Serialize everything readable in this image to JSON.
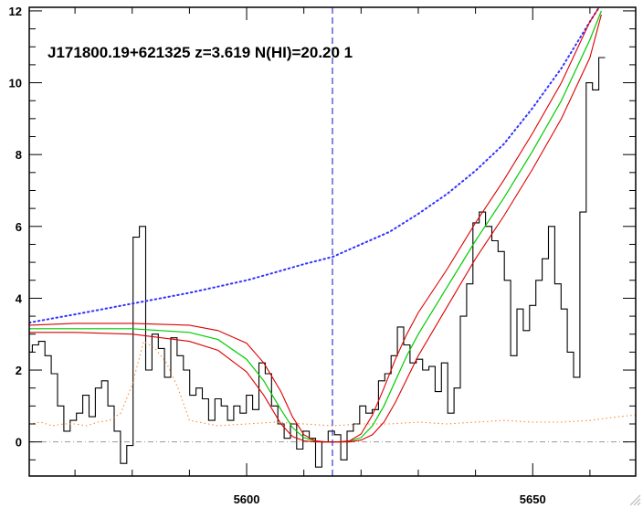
{
  "chart_data": {
    "type": "line",
    "title": "J171800.19+621325 z=3.619 N(HI)=20.20 1",
    "xlabel": "",
    "ylabel": "",
    "xlim": [
      5562,
      5668
    ],
    "ylim": [
      -0.95,
      12.1
    ],
    "x_ticks": [
      5600,
      5650
    ],
    "y_ticks": [
      0,
      2,
      4,
      6,
      8,
      10,
      12
    ],
    "grid": false,
    "legend": "none",
    "vline_x": 5615,
    "zero_line_y": 0,
    "colors": {
      "flux": "#000000",
      "continuum": "#3333ff",
      "error": "#ff8833",
      "fit": "#00cc00",
      "fit_bounds": "#dd0000",
      "vline": "#2222cc",
      "zero_line": "#999999"
    },
    "series": [
      {
        "key": "flux",
        "style": "steps",
        "x": [
          5562.0,
          5563.1,
          5564.2,
          5565.3,
          5566.4,
          5567.5,
          5568.6,
          5569.7,
          5570.8,
          5571.9,
          5573.0,
          5574.1,
          5575.2,
          5576.3,
          5577.4,
          5578.5,
          5579.6,
          5580.7,
          5581.8,
          5582.9,
          5584.0,
          5585.1,
          5586.2,
          5587.3,
          5588.4,
          5589.5,
          5590.6,
          5591.7,
          5592.8,
          5593.9,
          5595.0,
          5596.1,
          5597.2,
          5598.3,
          5599.4,
          5600.5,
          5601.6,
          5602.7,
          5603.8,
          5604.9,
          5606.0,
          5607.1,
          5608.2,
          5609.3,
          5610.4,
          5611.5,
          5612.6,
          5613.7,
          5614.8,
          5615.9,
          5617.0,
          5618.1,
          5619.2,
          5620.3,
          5621.4,
          5622.5,
          5623.6,
          5624.7,
          5625.8,
          5626.9,
          5628.0,
          5629.1,
          5630.2,
          5631.3,
          5632.4,
          5633.5,
          5634.6,
          5635.7,
          5636.8,
          5637.9,
          5639.0,
          5640.1,
          5641.2,
          5642.3,
          5643.4,
          5644.5,
          5645.6,
          5646.7,
          5647.8,
          5648.9,
          5650.0,
          5651.1,
          5652.2,
          5653.3,
          5654.4,
          5655.5,
          5656.6,
          5657.7,
          5658.8,
          5659.9,
          5661.0,
          5662.1
        ],
        "y": [
          2.5,
          2.7,
          2.8,
          2.4,
          1.9,
          1.0,
          0.3,
          0.6,
          0.8,
          1.3,
          0.7,
          1.5,
          1.7,
          1.0,
          0.3,
          -0.6,
          -0.1,
          5.7,
          6.0,
          2.0,
          3.0,
          2.6,
          1.8,
          2.9,
          2.4,
          2.0,
          1.3,
          1.5,
          1.2,
          0.6,
          1.2,
          1.0,
          0.6,
          1.0,
          0.8,
          1.3,
          0.9,
          2.2,
          1.9,
          1.0,
          0.5,
          0.1,
          0.5,
          -0.2,
          0.3,
          0.1,
          -0.7,
          0.0,
          0.3,
          0.2,
          -0.5,
          0.3,
          0.5,
          1.0,
          0.8,
          0.9,
          1.7,
          1.9,
          2.4,
          3.2,
          2.7,
          2.2,
          2.3,
          2.0,
          2.1,
          1.4,
          2.2,
          0.8,
          1.5,
          3.5,
          4.4,
          6.1,
          6.4,
          6.0,
          5.6,
          5.3,
          4.5,
          2.4,
          3.7,
          3.1,
          3.8,
          4.5,
          5.1,
          6.0,
          4.4,
          3.7,
          2.5,
          1.8,
          6.4,
          10.0,
          9.8,
          10.7
        ]
      },
      {
        "key": "continuum",
        "style": "dotted",
        "x": [
          5562,
          5570,
          5580,
          5590,
          5600,
          5605,
          5610,
          5615,
          5620,
          5625,
          5630,
          5635,
          5640,
          5645,
          5650,
          5655,
          5660,
          5662
        ],
        "y": [
          3.32,
          3.55,
          3.85,
          4.15,
          4.5,
          4.72,
          4.95,
          5.15,
          5.5,
          5.85,
          6.35,
          6.9,
          7.55,
          8.3,
          9.3,
          10.4,
          11.7,
          12.2
        ]
      },
      {
        "key": "error",
        "style": "dotted",
        "x": [
          5562,
          5564,
          5566,
          5568,
          5570,
          5572,
          5574,
          5576,
          5578,
          5580,
          5582,
          5584,
          5586,
          5588,
          5590,
          5595,
          5600,
          5605,
          5610,
          5615,
          5620,
          5625,
          5630,
          5635,
          5640,
          5645,
          5650,
          5655,
          5660,
          5665,
          5668
        ],
        "y": [
          0.5,
          0.55,
          0.45,
          0.5,
          0.5,
          0.45,
          0.55,
          0.6,
          0.8,
          1.6,
          2.8,
          2.6,
          2.2,
          1.5,
          0.6,
          0.45,
          0.5,
          0.55,
          0.5,
          0.45,
          0.5,
          0.5,
          0.55,
          0.5,
          0.55,
          0.6,
          0.55,
          0.55,
          0.6,
          0.7,
          0.75
        ]
      },
      {
        "key": "fit",
        "style": "solid",
        "x": [
          5562,
          5570,
          5580,
          5590,
          5595,
          5600,
          5603,
          5606,
          5608,
          5610,
          5612,
          5614,
          5616,
          5618,
          5620,
          5622,
          5624,
          5626,
          5628,
          5630,
          5635,
          5640,
          5645,
          5650,
          5655,
          5660,
          5662
        ],
        "y": [
          3.15,
          3.15,
          3.15,
          3.05,
          2.85,
          2.3,
          1.7,
          0.9,
          0.4,
          0.12,
          0.02,
          0.0,
          0.0,
          0.02,
          0.12,
          0.45,
          1.0,
          1.7,
          2.4,
          3.0,
          4.3,
          5.6,
          6.8,
          8.1,
          9.5,
          11.2,
          12.0
        ]
      },
      {
        "key": "fit_upper",
        "style": "solid",
        "x": [
          5562,
          5570,
          5580,
          5590,
          5595,
          5600,
          5603,
          5606,
          5608,
          5610,
          5612,
          5614,
          5616,
          5618,
          5620,
          5622,
          5624,
          5626,
          5628,
          5630,
          5635,
          5640,
          5645,
          5650,
          5655,
          5660,
          5662
        ],
        "y": [
          3.25,
          3.3,
          3.3,
          3.25,
          3.1,
          2.75,
          2.2,
          1.4,
          0.7,
          0.2,
          0.03,
          0.0,
          0.0,
          0.03,
          0.22,
          0.75,
          1.5,
          2.3,
          3.0,
          3.6,
          4.8,
          6.1,
          7.3,
          8.6,
          10.0,
          11.7,
          12.2
        ]
      },
      {
        "key": "fit_lower",
        "style": "solid",
        "x": [
          5562,
          5570,
          5580,
          5590,
          5595,
          5600,
          5603,
          5606,
          5608,
          5610,
          5612,
          5614,
          5616,
          5618,
          5620,
          5622,
          5624,
          5626,
          5628,
          5630,
          5635,
          5640,
          5645,
          5650,
          5655,
          5660,
          5662
        ],
        "y": [
          3.05,
          3.05,
          3.0,
          2.8,
          2.55,
          1.95,
          1.3,
          0.5,
          0.15,
          0.03,
          0.0,
          0.0,
          0.0,
          0.0,
          0.05,
          0.2,
          0.55,
          1.1,
          1.75,
          2.4,
          3.75,
          5.1,
          6.3,
          7.6,
          9.0,
          10.7,
          11.9
        ]
      }
    ]
  }
}
